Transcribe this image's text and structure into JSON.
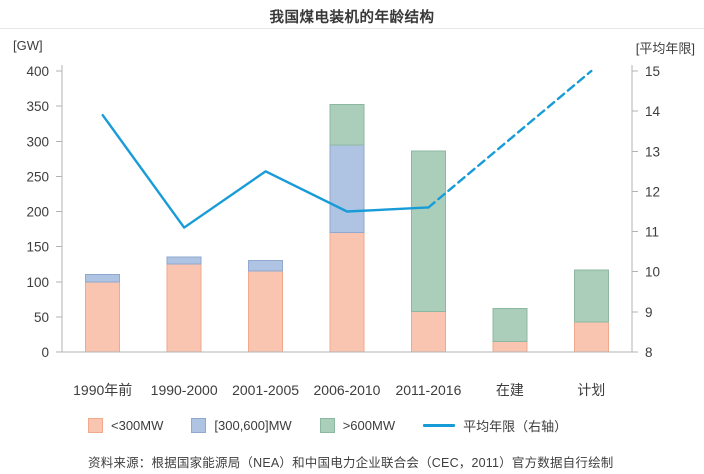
{
  "header": {
    "title": "我国煤电装机的年龄结构"
  },
  "axes": {
    "left_unit": "[GW]",
    "right_unit": "[平均年限]"
  },
  "chart_data": {
    "type": "bar+line",
    "title": "我国煤电装机的年龄结构",
    "categories": [
      "1990年前",
      "1990-2000",
      "2001-2005",
      "2006-2010",
      "2011-2016",
      "在建",
      "计划"
    ],
    "series": [
      {
        "name": "<300MW",
        "color": "#f9c5b1",
        "border": "#f0a98f",
        "values": [
          100,
          125,
          115,
          170,
          58,
          15,
          43
        ]
      },
      {
        "name": "[300,600]MW",
        "color": "#afc4e2",
        "border": "#8fa9d0",
        "values": [
          10,
          10,
          15,
          125,
          0,
          0,
          0
        ]
      },
      {
        "name": ">600MW",
        "color": "#abceba",
        "border": "#8cb8a1",
        "values": [
          0,
          0,
          0,
          57,
          228,
          47,
          74
        ]
      }
    ],
    "line": {
      "name": "平均年限（右轴）",
      "axis": "right",
      "color": "#189cd8",
      "solid": {
        "category_indices": [
          0,
          1,
          2,
          3,
          4
        ],
        "values": [
          13.9,
          11.1,
          12.5,
          11.5,
          11.6
        ]
      },
      "dashed": {
        "category_indices": [
          4,
          6
        ],
        "values": [
          11.6,
          15.0
        ]
      }
    },
    "left_ylabel": "[GW]",
    "right_ylabel": "[平均年限]",
    "left_ylim": [
      0,
      400
    ],
    "right_ylim": [
      8,
      15
    ],
    "left_ticks": [
      0,
      50,
      100,
      150,
      200,
      250,
      300,
      350,
      400
    ],
    "right_ticks": [
      8,
      9,
      10,
      11,
      12,
      13,
      14,
      15
    ],
    "grid": false,
    "legend_position": "bottom"
  },
  "footer": {
    "source": "资料来源：根据国家能源局（NEA）和中国电力企业联合会（CEC，2011）官方数据自行绘制"
  }
}
